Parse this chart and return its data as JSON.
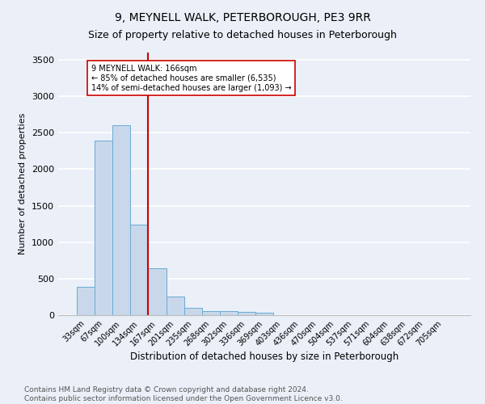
{
  "title": "9, MEYNELL WALK, PETERBOROUGH, PE3 9RR",
  "subtitle": "Size of property relative to detached houses in Peterborough",
  "xlabel": "Distribution of detached houses by size in Peterborough",
  "ylabel": "Number of detached properties",
  "footer_line1": "Contains HM Land Registry data © Crown copyright and database right 2024.",
  "footer_line2": "Contains public sector information licensed under the Open Government Licence v3.0.",
  "categories": [
    "33sqm",
    "67sqm",
    "100sqm",
    "134sqm",
    "167sqm",
    "201sqm",
    "235sqm",
    "268sqm",
    "302sqm",
    "336sqm",
    "369sqm",
    "403sqm",
    "436sqm",
    "470sqm",
    "504sqm",
    "537sqm",
    "571sqm",
    "604sqm",
    "638sqm",
    "672sqm",
    "705sqm"
  ],
  "values": [
    390,
    2390,
    2600,
    1240,
    640,
    250,
    100,
    60,
    55,
    40,
    35,
    0,
    0,
    0,
    0,
    0,
    0,
    0,
    0,
    0,
    0
  ],
  "bar_color": "#c8d8ea",
  "bar_edge_color": "#6aaad4",
  "vline_color": "#cc0000",
  "annotation_text": "9 MEYNELL WALK: 166sqm\n← 85% of detached houses are smaller (6,535)\n14% of semi-detached houses are larger (1,093) →",
  "annotation_box_color": "white",
  "annotation_box_edge_color": "#cc0000",
  "ylim": [
    0,
    3600
  ],
  "yticks": [
    0,
    500,
    1000,
    1500,
    2000,
    2500,
    3000,
    3500
  ],
  "bg_color": "#eaeff8",
  "plot_bg_color": "#eaeff8",
  "grid_color": "white",
  "title_fontsize": 10,
  "subtitle_fontsize": 9,
  "footer_fontsize": 6.5,
  "ylabel_fontsize": 8,
  "xlabel_fontsize": 8.5,
  "tick_fontsize": 7
}
